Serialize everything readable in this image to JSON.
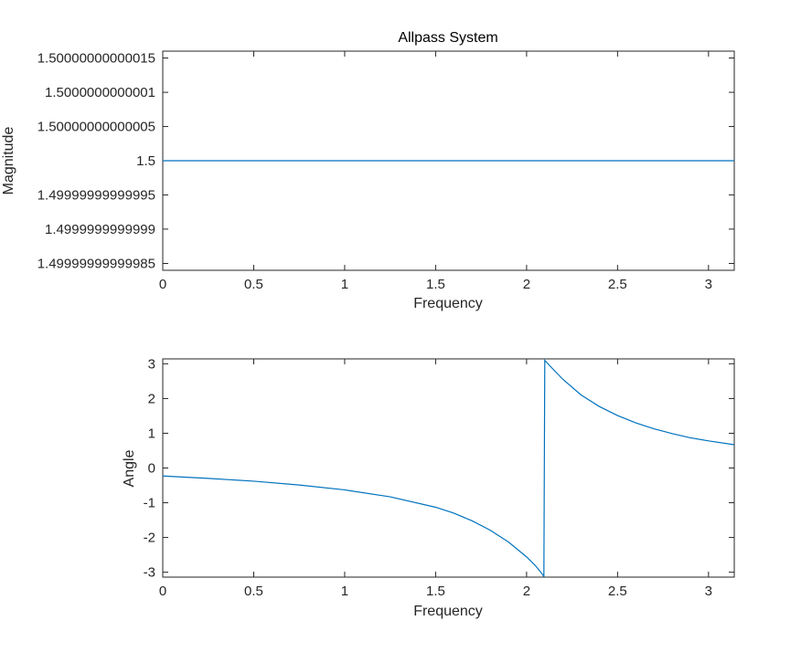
{
  "figure": {
    "background": "#ffffff",
    "axis_color": "#262626",
    "line_color": "#0072BD"
  },
  "chart_data": [
    {
      "type": "line",
      "title": "Allpass System",
      "xlabel": "Frequency",
      "ylabel": "Magnitude",
      "xlim": [
        0,
        3.14159
      ],
      "ylim": [
        1.49999999999984,
        1.50000000000016
      ],
      "xticks": [
        0,
        0.5,
        1,
        1.5,
        2,
        2.5,
        3
      ],
      "xtick_labels": [
        "0",
        "0.5",
        "1",
        "1.5",
        "2",
        "2.5",
        "3"
      ],
      "yticks": [
        1.49999999999985,
        1.4999999999999,
        1.49999999999995,
        1.5,
        1.50000000000005,
        1.5000000000001,
        1.50000000000015
      ],
      "ytick_labels": [
        "1.49999999999985",
        "1.4999999999999",
        "1.49999999999995",
        "1.5",
        "1.50000000000005",
        "1.5000000000001",
        "1.50000000000015"
      ],
      "series": [
        {
          "x": [
            0,
            3.14159
          ],
          "y": [
            1.5,
            1.5
          ]
        }
      ]
    },
    {
      "type": "line",
      "title": "",
      "xlabel": "Frequency",
      "ylabel": "Angle",
      "xlim": [
        0,
        3.14159
      ],
      "ylim": [
        -3.14159,
        3.14159
      ],
      "xticks": [
        0,
        0.5,
        1,
        1.5,
        2,
        2.5,
        3
      ],
      "xtick_labels": [
        "0",
        "0.5",
        "1",
        "1.5",
        "2",
        "2.5",
        "3"
      ],
      "yticks": [
        -3,
        -2,
        -1,
        0,
        1,
        2,
        3
      ],
      "ytick_labels": [
        "-3",
        "-2",
        "-1",
        "0",
        "1",
        "2",
        "3"
      ],
      "series": [
        {
          "x": [
            0,
            0.25,
            0.5,
            0.75,
            1.0,
            1.25,
            1.5,
            1.6,
            1.7,
            1.8,
            1.9,
            2.0,
            2.05,
            2.09,
            2.095,
            2.1,
            2.15,
            2.2,
            2.3,
            2.4,
            2.5,
            2.6,
            2.7,
            2.8,
            2.9,
            3.0,
            3.14159
          ],
          "y": [
            -0.23,
            -0.3,
            -0.38,
            -0.49,
            -0.63,
            -0.83,
            -1.13,
            -1.3,
            -1.52,
            -1.79,
            -2.13,
            -2.56,
            -2.82,
            -3.08,
            -3.13,
            3.1,
            2.82,
            2.55,
            2.1,
            1.77,
            1.51,
            1.3,
            1.13,
            0.99,
            0.87,
            0.78,
            0.67
          ]
        }
      ]
    }
  ]
}
